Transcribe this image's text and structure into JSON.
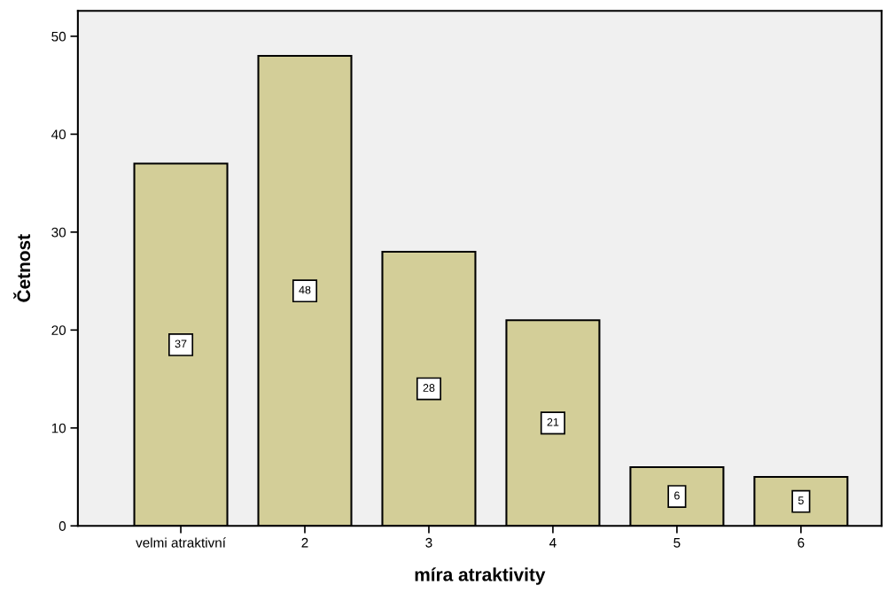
{
  "chart_data": {
    "type": "bar",
    "xlabel": "míra atraktivity",
    "ylabel": "Četnost",
    "categories": [
      "velmi atraktivní",
      "2",
      "3",
      "4",
      "5",
      "6"
    ],
    "values": [
      37,
      48,
      28,
      21,
      6,
      5
    ],
    "color": "#d3ce98",
    "ylim": [
      0,
      52.6
    ],
    "yticks": [
      0,
      10,
      20,
      30,
      40,
      50
    ],
    "grid": false,
    "data_labels": true
  }
}
